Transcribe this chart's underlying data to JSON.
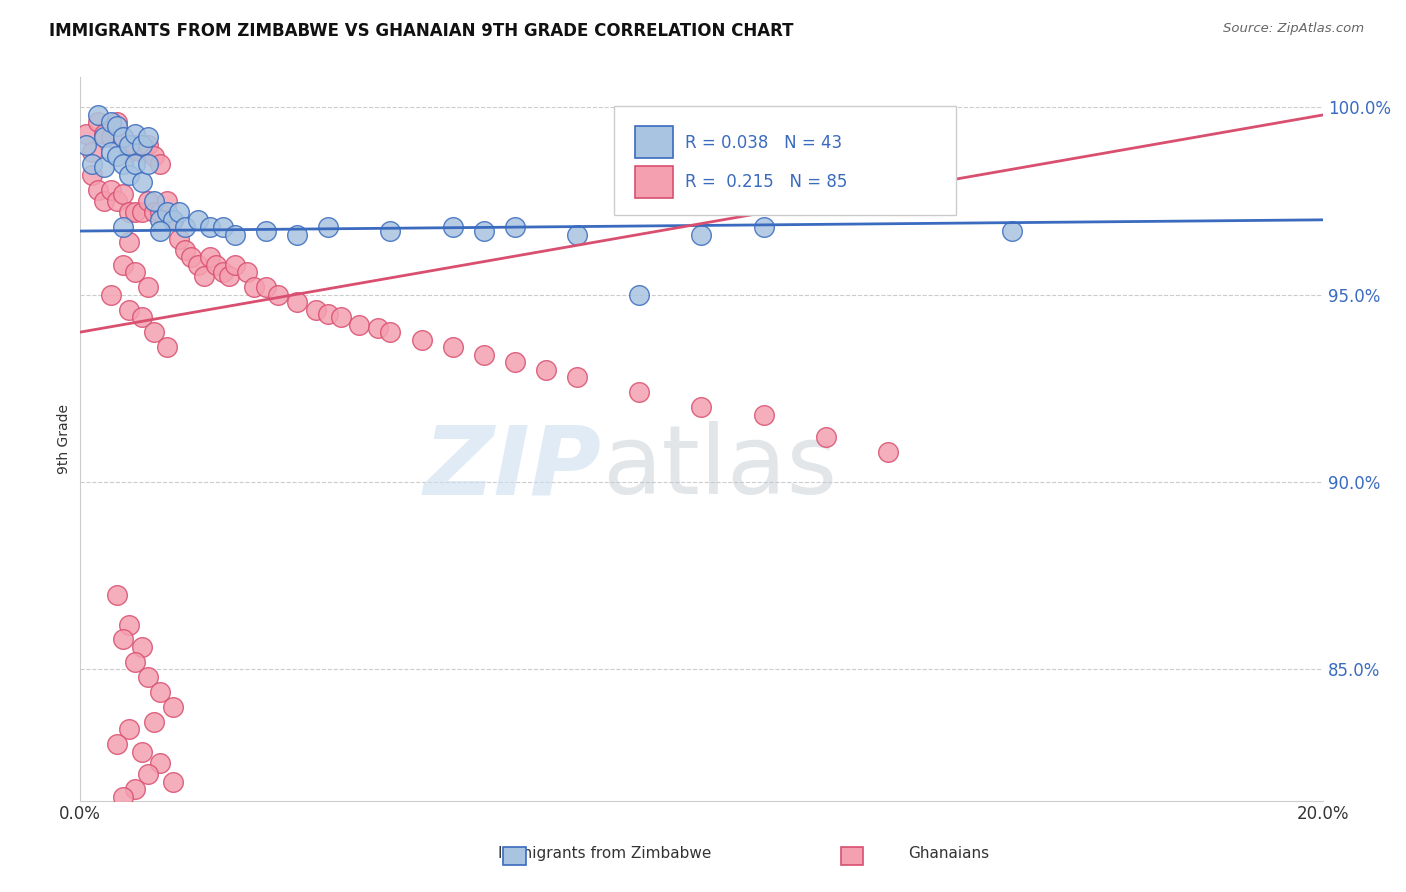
{
  "title": "IMMIGRANTS FROM ZIMBABWE VS GHANAIAN 9TH GRADE CORRELATION CHART",
  "source_text": "Source: ZipAtlas.com",
  "ylabel": "9th Grade",
  "xmin": 0.0,
  "xmax": 0.2,
  "ymin": 0.815,
  "ymax": 1.008,
  "yticks": [
    0.85,
    0.9,
    0.95,
    1.0
  ],
  "ytick_labels": [
    "85.0%",
    "90.0%",
    "95.0%",
    "100.0%"
  ],
  "xticks": [
    0.0,
    0.2
  ],
  "xtick_labels": [
    "0.0%",
    "20.0%"
  ],
  "blue_color": "#a8c4e0",
  "pink_color": "#f4a0b0",
  "blue_line_color": "#3a6bbf",
  "pink_line_color": "#d94f70",
  "blue_trend": [
    0.967,
    0.97
  ],
  "pink_trend": [
    0.94,
    0.998
  ],
  "blue_x": [
    0.001,
    0.002,
    0.003,
    0.004,
    0.004,
    0.005,
    0.005,
    0.006,
    0.006,
    0.007,
    0.007,
    0.008,
    0.008,
    0.009,
    0.009,
    0.01,
    0.01,
    0.011,
    0.011,
    0.012,
    0.013,
    0.014,
    0.015,
    0.016,
    0.017,
    0.019,
    0.021,
    0.023,
    0.025,
    0.03,
    0.035,
    0.04,
    0.05,
    0.06,
    0.065,
    0.07,
    0.08,
    0.09,
    0.1,
    0.11,
    0.013,
    0.007,
    0.15
  ],
  "blue_y": [
    0.99,
    0.985,
    0.998,
    0.992,
    0.984,
    0.996,
    0.988,
    0.995,
    0.987,
    0.992,
    0.985,
    0.99,
    0.982,
    0.993,
    0.985,
    0.99,
    0.98,
    0.992,
    0.985,
    0.975,
    0.97,
    0.972,
    0.97,
    0.972,
    0.968,
    0.97,
    0.968,
    0.968,
    0.966,
    0.967,
    0.966,
    0.968,
    0.967,
    0.968,
    0.967,
    0.968,
    0.966,
    0.95,
    0.966,
    0.968,
    0.967,
    0.968,
    0.967
  ],
  "pink_x": [
    0.001,
    0.002,
    0.002,
    0.003,
    0.003,
    0.004,
    0.004,
    0.005,
    0.005,
    0.006,
    0.006,
    0.007,
    0.007,
    0.008,
    0.008,
    0.008,
    0.009,
    0.009,
    0.01,
    0.01,
    0.011,
    0.011,
    0.012,
    0.012,
    0.013,
    0.013,
    0.014,
    0.015,
    0.016,
    0.017,
    0.018,
    0.019,
    0.02,
    0.021,
    0.022,
    0.023,
    0.024,
    0.025,
    0.027,
    0.028,
    0.03,
    0.032,
    0.035,
    0.038,
    0.04,
    0.042,
    0.045,
    0.048,
    0.05,
    0.055,
    0.06,
    0.065,
    0.07,
    0.075,
    0.08,
    0.09,
    0.1,
    0.11,
    0.12,
    0.13,
    0.007,
    0.009,
    0.011,
    0.005,
    0.008,
    0.01,
    0.012,
    0.014,
    0.006,
    0.008,
    0.01,
    0.007,
    0.009,
    0.011,
    0.013,
    0.015,
    0.012,
    0.008,
    0.006,
    0.01,
    0.013,
    0.011,
    0.015,
    0.009,
    0.007
  ],
  "pink_y": [
    0.993,
    0.988,
    0.982,
    0.996,
    0.978,
    0.993,
    0.975,
    0.992,
    0.978,
    0.996,
    0.975,
    0.992,
    0.977,
    0.988,
    0.972,
    0.964,
    0.99,
    0.972,
    0.988,
    0.972,
    0.99,
    0.975,
    0.987,
    0.972,
    0.985,
    0.972,
    0.975,
    0.97,
    0.965,
    0.962,
    0.96,
    0.958,
    0.955,
    0.96,
    0.958,
    0.956,
    0.955,
    0.958,
    0.956,
    0.952,
    0.952,
    0.95,
    0.948,
    0.946,
    0.945,
    0.944,
    0.942,
    0.941,
    0.94,
    0.938,
    0.936,
    0.934,
    0.932,
    0.93,
    0.928,
    0.924,
    0.92,
    0.918,
    0.912,
    0.908,
    0.958,
    0.956,
    0.952,
    0.95,
    0.946,
    0.944,
    0.94,
    0.936,
    0.87,
    0.862,
    0.856,
    0.858,
    0.852,
    0.848,
    0.844,
    0.84,
    0.836,
    0.834,
    0.83,
    0.828,
    0.825,
    0.822,
    0.82,
    0.818,
    0.816
  ]
}
